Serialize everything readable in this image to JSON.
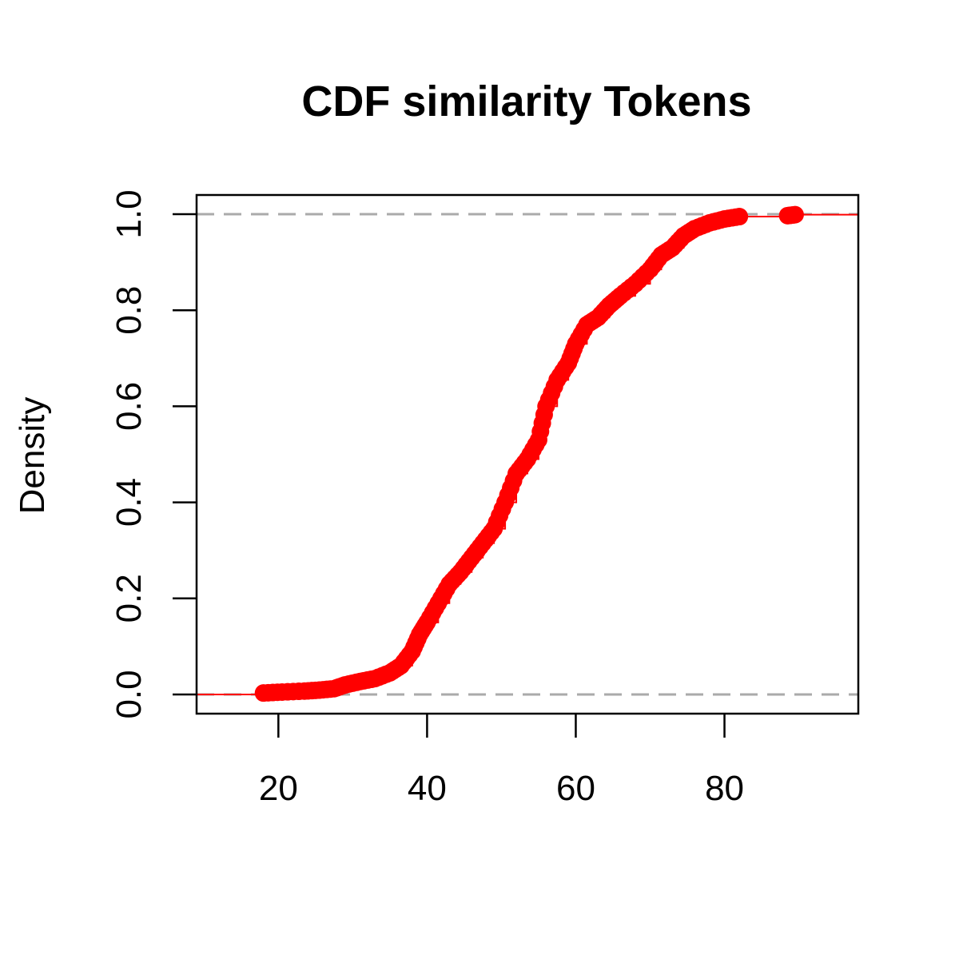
{
  "chart_data": {
    "type": "scatter",
    "title": "CDF similarity Tokens",
    "xlabel": "",
    "ylabel": "Density",
    "xlim": [
      9,
      98
    ],
    "ylim": [
      -0.04,
      1.04
    ],
    "xticks": [
      20,
      40,
      60,
      80
    ],
    "yticks": [
      0.0,
      0.2,
      0.4,
      0.6,
      0.8,
      1.0
    ],
    "xtick_labels": [
      "20",
      "40",
      "60",
      "80"
    ],
    "ytick_labels": [
      "0.0",
      "0.2",
      "0.4",
      "0.6",
      "0.8",
      "1.0"
    ],
    "grid": false,
    "legend": "none",
    "reference_lines": [
      0,
      1
    ],
    "colors": {
      "points": "#ff0000",
      "step_line": "#ff0000",
      "reference": "#aaaaaa",
      "frame": "#000000"
    },
    "series": [
      {
        "values": [
          [
            18,
            0.003
          ],
          [
            20.5,
            0.005
          ],
          [
            23.5,
            0.007
          ],
          [
            25.5,
            0.009
          ],
          [
            27.5,
            0.012
          ],
          [
            29,
            0.02
          ],
          [
            31,
            0.027
          ],
          [
            33,
            0.033
          ],
          [
            35,
            0.045
          ],
          [
            36.5,
            0.06
          ],
          [
            38,
            0.09
          ],
          [
            39,
            0.125
          ],
          [
            40,
            0.15
          ],
          [
            41.5,
            0.19
          ],
          [
            43,
            0.23
          ],
          [
            44.5,
            0.255
          ],
          [
            46,
            0.285
          ],
          [
            47.5,
            0.315
          ],
          [
            49,
            0.345
          ],
          [
            50.5,
            0.4
          ],
          [
            52,
            0.46
          ],
          [
            53.5,
            0.49
          ],
          [
            55,
            0.53
          ],
          [
            56,
            0.6
          ],
          [
            57.5,
            0.655
          ],
          [
            59,
            0.69
          ],
          [
            60,
            0.73
          ],
          [
            61.5,
            0.77
          ],
          [
            63,
            0.785
          ],
          [
            64.5,
            0.81
          ],
          [
            66,
            0.83
          ],
          [
            68,
            0.855
          ],
          [
            70,
            0.885
          ],
          [
            71.5,
            0.915
          ],
          [
            73,
            0.93
          ],
          [
            74.5,
            0.955
          ],
          [
            76,
            0.97
          ],
          [
            78,
            0.982
          ],
          [
            80,
            0.99
          ],
          [
            82,
            0.995
          ],
          [
            88.5,
            0.997
          ],
          [
            89.5,
            0.999
          ]
        ]
      }
    ]
  }
}
